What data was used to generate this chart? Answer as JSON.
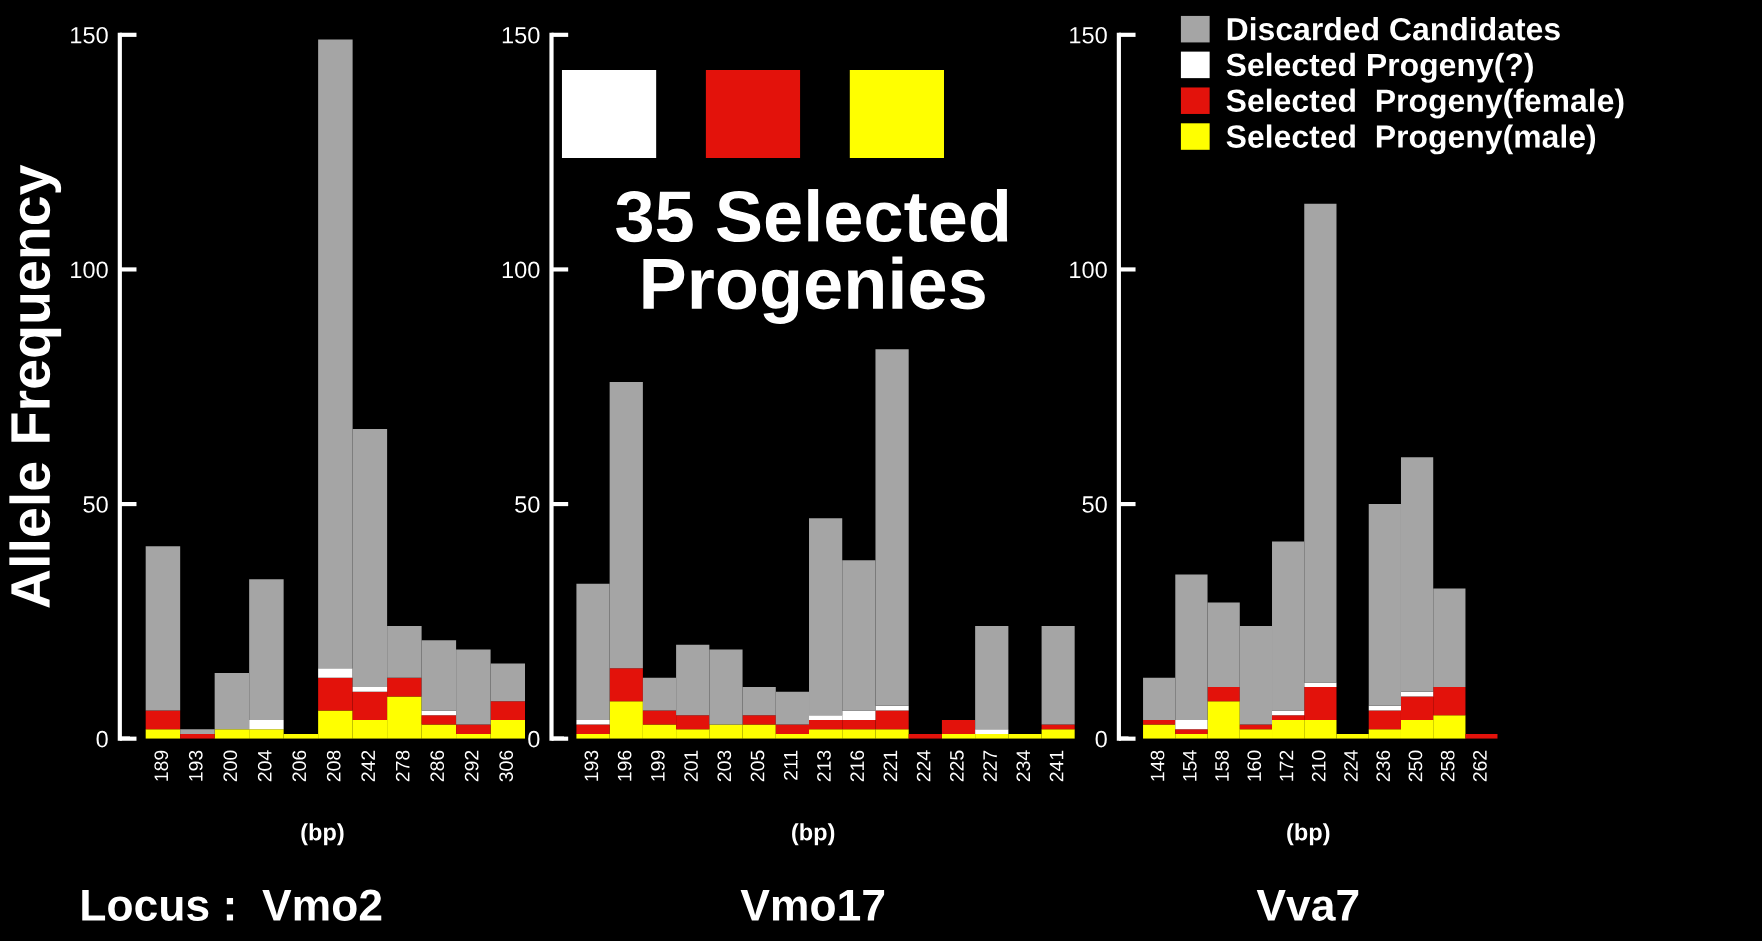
{
  "chart_data": [
    {
      "type": "bar",
      "stacked": true,
      "title": "Locus :  Vmo2",
      "xlabel": "(bp)",
      "ylabel": "Allele Frequency",
      "categories": [
        "189",
        "193",
        "200",
        "204",
        "206",
        "208",
        "242",
        "278",
        "286",
        "292",
        "306"
      ],
      "ylim": [
        0,
        150
      ],
      "yticks": [
        0,
        50,
        100,
        150
      ],
      "series": [
        {
          "color": "#ffff00",
          "values": [
            2,
            0,
            2,
            2,
            1,
            6,
            4,
            9,
            3,
            1,
            4
          ]
        },
        {
          "color": "#e3120b",
          "values": [
            4,
            1,
            0,
            0,
            0,
            7,
            6,
            4,
            2,
            2,
            4
          ]
        },
        {
          "color": "#ffffff",
          "values": [
            0,
            0,
            0,
            2,
            0,
            2,
            1,
            0,
            1,
            0,
            0
          ]
        },
        {
          "color": "#a5a5a5",
          "values": [
            35,
            1,
            12,
            30,
            0,
            134,
            55,
            11,
            15,
            16,
            8
          ]
        }
      ]
    },
    {
      "type": "bar",
      "stacked": true,
      "title": "Vmo17",
      "xlabel": "(bp)",
      "annotations": [
        "35 Selected\nProgenies"
      ],
      "categories": [
        "193",
        "196",
        "199",
        "201",
        "203",
        "205",
        "211",
        "213",
        "216",
        "221",
        "224",
        "225",
        "227",
        "234",
        "241"
      ],
      "ylim": [
        0,
        150
      ],
      "yticks": [
        0,
        50,
        100,
        150
      ],
      "series": [
        {
          "color": "#ffff00",
          "values": [
            1,
            8,
            3,
            2,
            3,
            3,
            1,
            2,
            2,
            2,
            0,
            1,
            1,
            1,
            2
          ]
        },
        {
          "color": "#e3120b",
          "values": [
            2,
            7,
            3,
            3,
            0,
            2,
            2,
            2,
            2,
            4,
            1,
            3,
            0,
            0,
            1
          ]
        },
        {
          "color": "#ffffff",
          "values": [
            1,
            0,
            0,
            0,
            0,
            0,
            0,
            1,
            2,
            1,
            0,
            0,
            1,
            0,
            0
          ]
        },
        {
          "color": "#a5a5a5",
          "values": [
            29,
            61,
            7,
            15,
            16,
            6,
            7,
            42,
            32,
            76,
            0,
            0,
            22,
            0,
            21
          ]
        }
      ]
    },
    {
      "type": "bar",
      "stacked": true,
      "title": "Vva7",
      "xlabel": "(bp)",
      "legend": "top right",
      "categories": [
        "148",
        "154",
        "158",
        "160",
        "172",
        "210",
        "224",
        "236",
        "250",
        "258",
        "262"
      ],
      "ylim": [
        0,
        150
      ],
      "yticks": [
        0,
        50,
        100,
        150
      ],
      "series": [
        {
          "name": "Selected  Progeny(male)",
          "color": "#ffff00",
          "values": [
            3,
            1,
            8,
            2,
            4,
            4,
            1,
            2,
            4,
            5,
            0
          ]
        },
        {
          "name": "Selected  Progeny(female)",
          "color": "#e3120b",
          "values": [
            1,
            1,
            3,
            1,
            1,
            7,
            0,
            4,
            5,
            6,
            1
          ]
        },
        {
          "name": "Selected Progeny(?)",
          "color": "#ffffff",
          "values": [
            0,
            2,
            0,
            0,
            1,
            1,
            0,
            1,
            1,
            0,
            0
          ]
        },
        {
          "name": "Discarded Candidates",
          "color": "#a5a5a5",
          "values": [
            9,
            31,
            18,
            21,
            36,
            102,
            0,
            43,
            50,
            21,
            0
          ]
        }
      ]
    }
  ]
}
